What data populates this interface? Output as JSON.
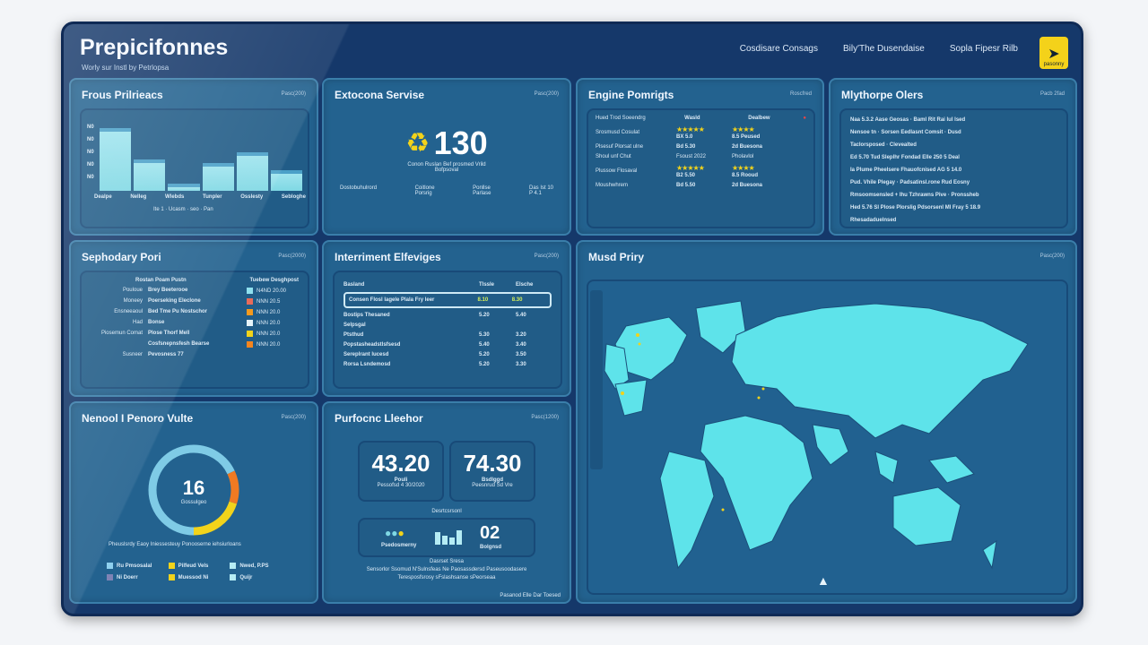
{
  "header": {
    "title": "Prepicifonnes",
    "subtitle": "Worly sur Instl by Petrlopsa",
    "nav": [
      "Cosdisare Consags",
      "Bily'The Dusendaise",
      "Sopla Fipesr Rilb"
    ],
    "logo_text": "pasonny"
  },
  "panels": {
    "p1": {
      "title": "Frous Prilrieacs",
      "meta": "Pasc(200)",
      "y_ticks": [
        "N0",
        "N0",
        "N0",
        "N0",
        "N0"
      ],
      "x_labels": [
        "Dealpe",
        "Nelleg",
        "Wlebds",
        "Tunpler",
        "Osslesty",
        "Sebloghe"
      ],
      "legend": "Ite 1 · Ucasm · seo · Pan",
      "bars": [
        0.9,
        0.45,
        0.1,
        0.4,
        0.55,
        0.3
      ],
      "colors": {
        "bar": "#7fd8e4",
        "dark": "#2ea8bf"
      }
    },
    "p2": {
      "title": "Extocona Servise",
      "meta": "Pasc(200)",
      "value": "130",
      "icon": "recycle-icon",
      "caption": "Conon Ruslan Bef prosmed Vrild",
      "caption2": "Bofpsoval",
      "stats": [
        [
          "Dostobuhulrord",
          ""
        ],
        [
          "Coitlone",
          "Porsrig"
        ],
        [
          "Ponllse",
          "Parlase"
        ],
        [
          "Das Ist 10",
          "P 4.1"
        ]
      ]
    },
    "p3": {
      "title": "Engine Pomrigts",
      "meta": "Roscfred",
      "headers": [
        "Hued Trod Soeendrg",
        "Wasld",
        "Dealbew"
      ],
      "rows": [
        [
          "Srosmusd Cosulat",
          "5",
          "4",
          "BX 5.0",
          "8.5 Peused"
        ],
        [
          "Plsesuf Plorsat ulne",
          "",
          "",
          "Bd 5.30",
          "2d Buesona"
        ],
        [
          "Shoul unf Chut",
          "Fsoust 2022",
          "Pholavlol",
          "",
          ""
        ],
        [
          "Plussow Flosaval",
          "5",
          "4",
          "B2 5.50",
          "8.5 Rooud"
        ],
        [
          "Moushwhrem",
          "",
          "",
          "Bd 5.50",
          "2d Buesona"
        ]
      ]
    },
    "p4": {
      "title": "Mlythorpe Olers",
      "meta": "Pacb 2fad",
      "lines": [
        "Naa 5.3.2  Aase  Geosas  ·  Baml Rit  Rai lul Ised",
        "Nensoe tn  ·  Sorsen Eedlasnt  Comsit · Dusd",
        "Taclorsposed  ·  Clevealted",
        "Ed 5.70  Tud  Sleplhr  Fondad  Elle 250  5 Deal",
        "Ia Plume Pheelsere  Fhauofcnised  AG 5 14.0",
        "Pud. Vhile  Plegay  ·  Padsatinsl.rone  Rud Eosny",
        "Rmsoomsensled  + Ihu Tzhrawns Pive  ·  Pronssheb",
        "Hed 5.76 Sl  Plose Plorslig  Pdsorsenl Ml  Fray 5 18.9",
        "Rhesadaduelnsed"
      ]
    },
    "p5": {
      "title": "Sephodary Pori",
      "meta": "Pasc(2000)",
      "headers": [
        "Rostan Poam Pustn",
        "Tuebew Desghpost"
      ],
      "rows": [
        [
          "Pouloue",
          "Brey Beeterooe",
          "N4ND 20.00",
          "#8fe0ee"
        ],
        [
          "Moneey",
          "Poerseking Eleclone",
          "NNN 20.5",
          "#e86b5a"
        ],
        [
          "Ensneeaoul",
          "Bed Tme Pu Nostschor",
          "NNN 20.0",
          "#f59a1e"
        ],
        [
          "Had",
          "Bonse",
          "NNN 20.0",
          "#e6f4fa"
        ],
        [
          "Piosemun Comat",
          "Plose Thorf Mell",
          "NNN 20.0",
          "#f2d31b"
        ],
        [
          "",
          "Cosfsnepnsfesh Bearse",
          "NNN 20.0",
          "#f5851e"
        ],
        [
          "Susneer",
          "Pevosness 77",
          "",
          ""
        ]
      ]
    },
    "p6": {
      "title": "Interriment Elfeviges",
      "meta": "Pasc(200)",
      "headers": [
        "Basland",
        "Tlssle",
        "Elsche"
      ],
      "rows": [
        [
          "Consen Flosl lagele Plala Fry leer",
          "8.10",
          "8.30"
        ],
        [
          "Bostips Thesaned",
          "5.20",
          "5.40"
        ],
        [
          "Selpsgal",
          "",
          ""
        ],
        [
          "Ptsthud",
          "5.30",
          "3.20"
        ],
        [
          "Popstasheadstlsfsesd",
          "5.40",
          "3.40"
        ],
        [
          "Sereplrant lucesd",
          "5.20",
          "3.50"
        ],
        [
          "Rorsa Lsndemosd",
          "5.20",
          "3.30"
        ]
      ]
    },
    "p7": {
      "title": "Nenool I Penoro Vulte",
      "meta": "Pasc(200)",
      "gauge_value": "16",
      "gauge_label": "Gossulgeo",
      "segments": [
        {
          "color": "#f2d31b",
          "fraction": 0.2
        },
        {
          "color": "#f07a22",
          "fraction": 0.12
        },
        {
          "color": "#7fcbe6",
          "fraction": 0.68
        }
      ],
      "caption": "Pheuslsrdy Eaoy Iniessesteuy Ponooserne iehsiurloans",
      "legend": [
        [
          "Ru Pmsosalal",
          "#8fd0ee"
        ],
        [
          "Ni Doerr",
          "#7f83b5"
        ],
        [
          "Pilfeud Vels",
          "#f2d31b"
        ],
        [
          "Muessod Ni",
          "#f2d31b"
        ],
        [
          "Nwed, P.PS",
          "#b5ecf4"
        ],
        [
          "Quijr",
          "#b5ecf4"
        ]
      ]
    },
    "p8": {
      "title": "Purfocnc Lleehor",
      "meta": "Pasc(1200)",
      "kpis": [
        {
          "value": "43.20",
          "label": "Pouli",
          "sub": "Pessofsd 4 30/2020"
        },
        {
          "value": "74.30",
          "label": "Bsdlggd",
          "sub": "Peesnrud Sd Vre"
        }
      ],
      "section": "Desrtcsrsonl",
      "bottom_value": "02",
      "bottom_label": "Bolgnsd",
      "icons_label": "Psedosmerny",
      "footer1": "Dasrset Sresa",
      "footer2": "Sensorlor Ssomud  N'Sulnsfeas  Ne Paosassdersd  Paseusoodasere",
      "footer3": "Teresposfsrosy  sFslashsanse  sPeorseaa",
      "corner": "Pasanod Elle Dar Toesed"
    },
    "map": {
      "title": "Musd Priry",
      "meta": "Pasc(200)",
      "land_color": "#5ee3ea",
      "water_color": "#216190"
    }
  }
}
